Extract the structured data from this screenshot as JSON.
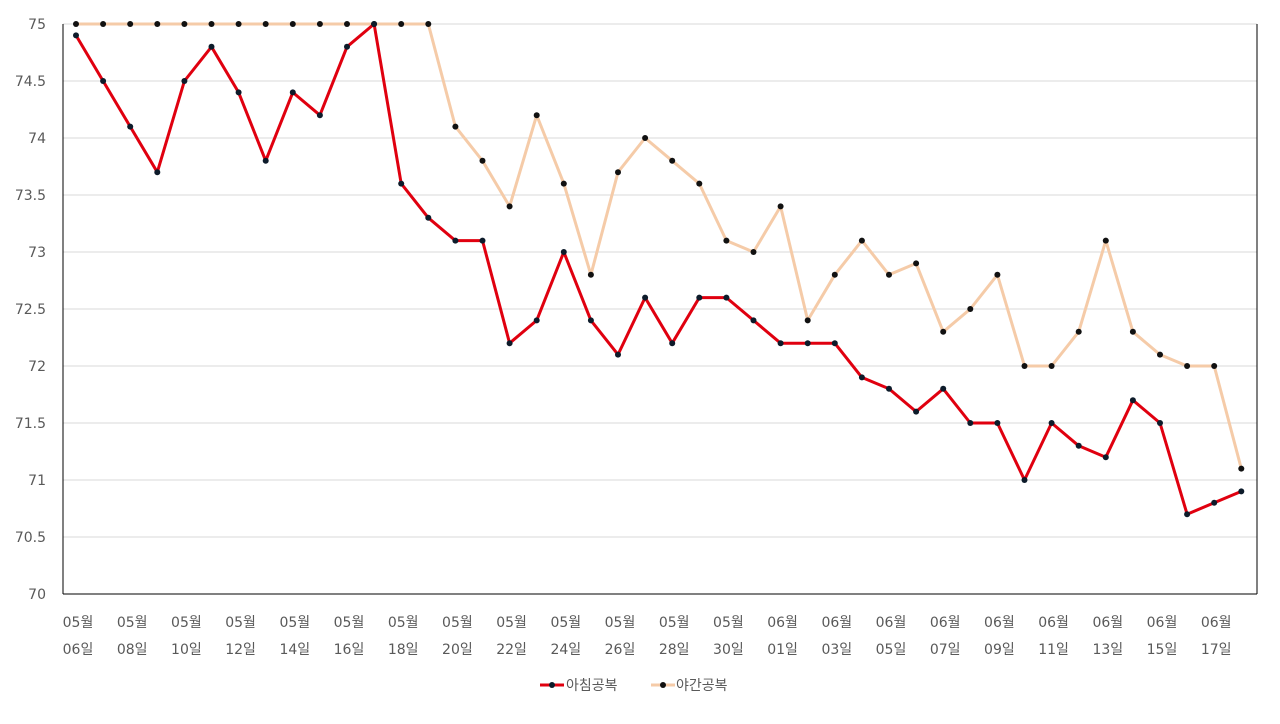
{
  "chart_data": {
    "type": "line",
    "title": "",
    "xlabel": "",
    "ylabel": "",
    "ylim": [
      70,
      75
    ],
    "y_ticks": [
      "70",
      "70.5",
      "71",
      "71.5",
      "72",
      "72.5",
      "73",
      "73.5",
      "74",
      "74.5",
      "75"
    ],
    "grid": "horizontal",
    "legend_position": "bottom",
    "x_tick_labels": [
      [
        "05월",
        "06일"
      ],
      [
        "05월",
        "08일"
      ],
      [
        "05월",
        "10일"
      ],
      [
        "05월",
        "12일"
      ],
      [
        "05월",
        "14일"
      ],
      [
        "05월",
        "16일"
      ],
      [
        "05월",
        "18일"
      ],
      [
        "05월",
        "20일"
      ],
      [
        "05월",
        "22일"
      ],
      [
        "05월",
        "24일"
      ],
      [
        "05월",
        "26일"
      ],
      [
        "05월",
        "28일"
      ],
      [
        "05월",
        "30일"
      ],
      [
        "06월",
        "01일"
      ],
      [
        "06월",
        "03일"
      ],
      [
        "06월",
        "05일"
      ],
      [
        "06월",
        "07일"
      ],
      [
        "06월",
        "09일"
      ],
      [
        "06월",
        "11일"
      ],
      [
        "06월",
        "13일"
      ],
      [
        "06월",
        "15일"
      ],
      [
        "06월",
        "17일"
      ]
    ],
    "series": [
      {
        "name": "아침공복",
        "color": "#e0000f",
        "marker_color": "#0d1b2a",
        "values": [
          74.9,
          74.5,
          74.1,
          73.7,
          74.5,
          74.8,
          74.4,
          73.8,
          74.4,
          74.2,
          74.8,
          75.0,
          73.6,
          73.3,
          73.1,
          73.1,
          72.2,
          72.4,
          73.0,
          72.4,
          72.1,
          72.6,
          72.2,
          72.6,
          72.6,
          72.4,
          72.2,
          72.2,
          72.2,
          71.9,
          71.8,
          71.6,
          71.8,
          71.5,
          71.5,
          71.0,
          71.5,
          71.3,
          71.2,
          71.7,
          71.5,
          70.7,
          70.8,
          70.9
        ]
      },
      {
        "name": "야간공복",
        "color": "#f5cba8",
        "marker_color": "#111111",
        "values": [
          75.0,
          75.0,
          75.0,
          75.0,
          75.0,
          75.0,
          75.0,
          75.0,
          75.0,
          75.0,
          75.0,
          75.0,
          75.0,
          75.0,
          74.1,
          73.8,
          73.4,
          74.2,
          73.6,
          72.8,
          73.7,
          74.0,
          73.8,
          73.6,
          73.1,
          73.0,
          73.4,
          72.4,
          72.8,
          73.1,
          72.8,
          72.9,
          72.3,
          72.5,
          72.8,
          72.0,
          72.0,
          72.3,
          73.1,
          72.3,
          72.1,
          72.0,
          72.0,
          71.1
        ]
      }
    ]
  }
}
